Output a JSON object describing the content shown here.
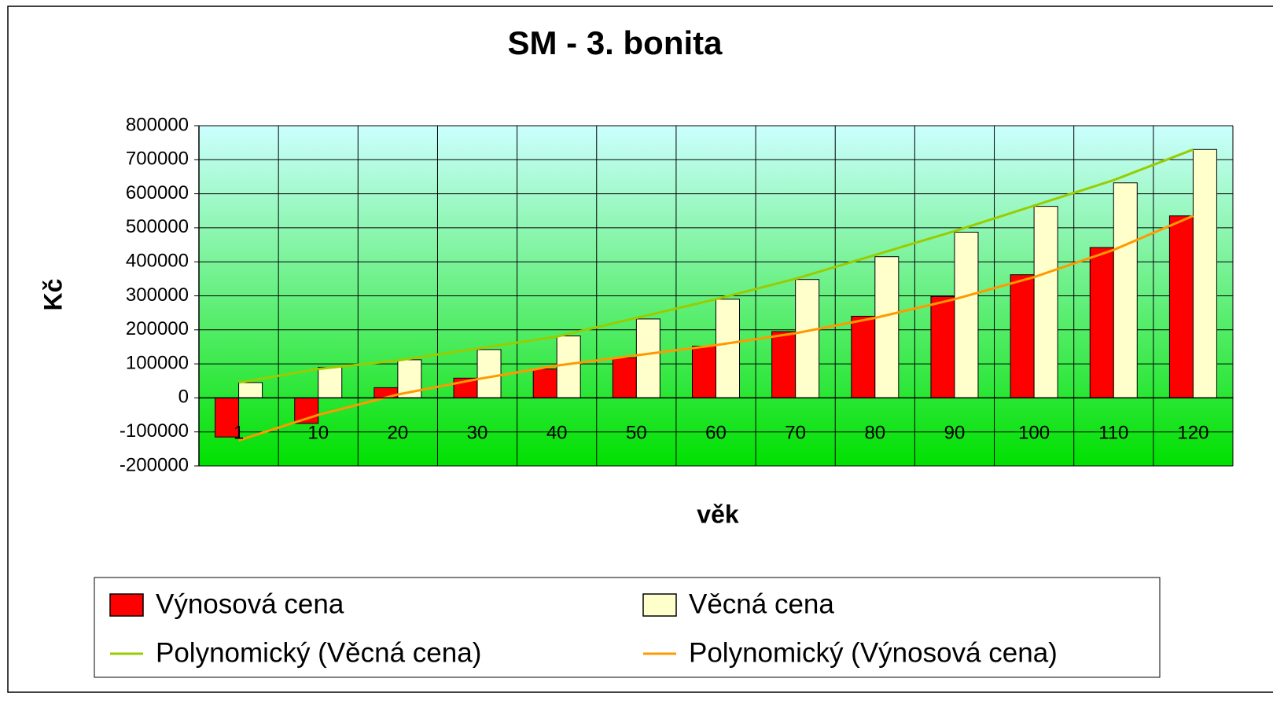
{
  "chart_data": {
    "type": "bar",
    "title": "SM - 3. bonita",
    "x_label": "věk",
    "y_label": "Kč",
    "categories": [
      "1",
      "10",
      "20",
      "30",
      "40",
      "50",
      "60",
      "70",
      "80",
      "90",
      "100",
      "110",
      "120"
    ],
    "series": [
      {
        "name": "Výnosová cena",
        "type": "bar",
        "color": "#ff0000",
        "values": [
          -115000,
          -75000,
          30000,
          58000,
          85000,
          118000,
          152000,
          195000,
          240000,
          298000,
          362000,
          442000,
          535000
        ]
      },
      {
        "name": "Věcná cena",
        "type": "bar",
        "color": "#ffffcc",
        "values": [
          45000,
          90000,
          112000,
          142000,
          182000,
          232000,
          290000,
          348000,
          415000,
          487000,
          563000,
          632000,
          730000
        ]
      },
      {
        "name": "Polynomický (Věcná cena)",
        "type": "line",
        "color": "#99cc00",
        "values": [
          45000,
          85000,
          110000,
          145000,
          180000,
          235000,
          290000,
          350000,
          420000,
          490000,
          565000,
          640000,
          730000
        ]
      },
      {
        "name": "Polynomický (Výnosová cena)",
        "type": "line",
        "color": "#ff9900",
        "values": [
          -125000,
          -50000,
          10000,
          55000,
          95000,
          125000,
          155000,
          190000,
          235000,
          290000,
          355000,
          435000,
          535000
        ]
      }
    ],
    "ylim": [
      -200000,
      800000
    ],
    "yticks": [
      -200000,
      -100000,
      0,
      100000,
      200000,
      300000,
      400000,
      500000,
      600000,
      700000,
      800000
    ],
    "grid": true,
    "legend": "bottom"
  }
}
